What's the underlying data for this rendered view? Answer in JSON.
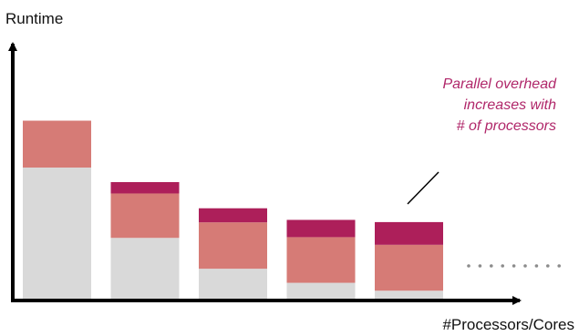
{
  "chart_data": {
    "type": "bar",
    "stacked": true,
    "ylabel": "Runtime",
    "xlabel": "#Processors/Cores",
    "categories": [
      "",
      "",
      "",
      "",
      ""
    ],
    "ylim": [
      0,
      100
    ],
    "series": [
      {
        "values": [
          53.5,
          25,
          12.5,
          6.8,
          3.6
        ]
      },
      {
        "values": [
          19,
          18,
          18.8,
          18.5,
          18.6
        ]
      },
      {
        "values": [
          0,
          4.6,
          5.7,
          7,
          9.2
        ]
      }
    ],
    "colors": [
      "#d9d9d9",
      "#d67b76",
      "#ad1f5a"
    ],
    "continuation_marker": "dotted-trail-after-last-bar",
    "grid": false,
    "legend": "none",
    "annotation": {
      "lines": [
        "Parallel overhead",
        "increases with",
        "# of processors"
      ],
      "color": "#b0276a",
      "points_to": "last-bar-top-segment"
    }
  }
}
